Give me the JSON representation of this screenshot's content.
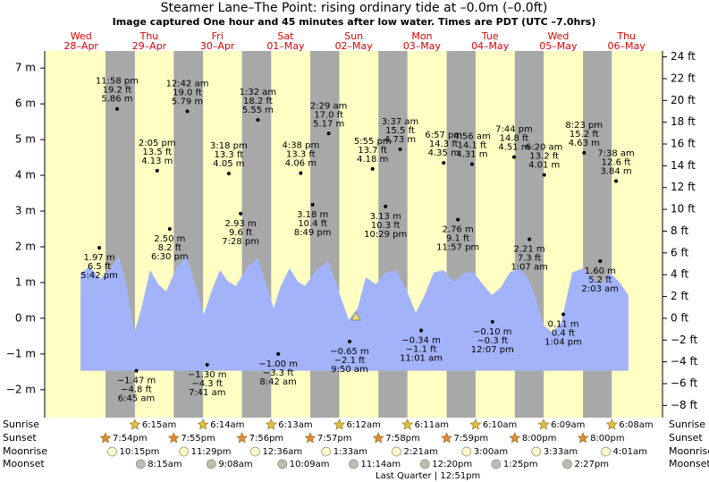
{
  "chart_data": {
    "type": "tide",
    "title": "Steamer Lane–The Point: rising  ordinary tide at –0.0m (–0.0ft)",
    "subtitle": "Image captured One hour and 45 minutes after low water. Times are PDT (UTC –7.0hrs)",
    "ylim": [
      -2.78,
      7.48
    ],
    "yticks": [
      {
        "value": -2,
        "label": "−2 m"
      },
      {
        "value": -1,
        "label": "−1 m"
      },
      {
        "value": 0,
        "label": "0 m"
      },
      {
        "value": 1,
        "label": "1 m"
      },
      {
        "value": 2,
        "label": "2 m"
      },
      {
        "value": 3,
        "label": "3 m"
      },
      {
        "value": 4,
        "label": "4 m"
      },
      {
        "value": 5,
        "label": "5 m"
      },
      {
        "value": 6,
        "label": "6 m"
      },
      {
        "value": 7,
        "label": "7 m"
      }
    ],
    "y2lim": [
      -9.12,
      24.54
    ],
    "y2ticks": [
      {
        "value": -8,
        "label": "−8 ft"
      },
      {
        "value": -6,
        "label": "−6 ft"
      },
      {
        "value": -4,
        "label": "−4 ft"
      },
      {
        "value": -2,
        "label": "−2 ft"
      },
      {
        "value": 0,
        "label": "0 ft"
      },
      {
        "value": 2,
        "label": "2 ft"
      },
      {
        "value": 4,
        "label": "4 ft"
      },
      {
        "value": 6,
        "label": "6 ft"
      },
      {
        "value": 8,
        "label": "8 ft"
      },
      {
        "value": 10,
        "label": "10 ft"
      },
      {
        "value": 12,
        "label": "12 ft"
      },
      {
        "value": 14,
        "label": "14 ft"
      },
      {
        "value": 16,
        "label": "16 ft"
      },
      {
        "value": 18,
        "label": "18 ft"
      },
      {
        "value": 20,
        "label": "20 ft"
      },
      {
        "value": 22,
        "label": "22 ft"
      },
      {
        "value": 24,
        "label": "24 ft"
      }
    ],
    "event_rows": [
      "Sunrise",
      "Sunset",
      "Moonrise",
      "Moonset"
    ],
    "days": [
      {
        "weekday": "Wed",
        "date": "28–Apr",
        "events": [
          null,
          "7:54pm",
          "10:15pm",
          null
        ],
        "extremes": [
          {
            "time": "5:42 pm",
            "m": 1.97,
            "m_label": "1.97 m",
            "ft_label": "6.5 ft"
          },
          {
            "time": "11:58 pm",
            "m": 5.86,
            "m_label": "5.86 m",
            "ft_label": "19.2 ft"
          }
        ]
      },
      {
        "weekday": "Thu",
        "date": "29–Apr",
        "events": [
          "6:15am",
          "7:55pm",
          "11:29pm",
          "8:15am"
        ],
        "extremes": [
          {
            "time": "6:45 am",
            "m": -1.47,
            "m_label": "−1.47 m",
            "ft_label": "−4.8 ft"
          },
          {
            "time": "2:05 pm",
            "m": 4.13,
            "m_label": "4.13 m",
            "ft_label": "13.5 ft"
          },
          {
            "time": "6:30 pm",
            "m": 2.5,
            "m_label": "2.50 m",
            "ft_label": "8.2 ft"
          }
        ]
      },
      {
        "weekday": "Fri",
        "date": "30–Apr",
        "events": [
          "6:14am",
          "7:56pm",
          null,
          "9:08am"
        ],
        "extremes": [
          {
            "time": "12:42 am",
            "m": 5.79,
            "m_label": "5.79 m",
            "ft_label": "19.0 ft"
          },
          {
            "time": "7:41 am",
            "m": -1.3,
            "m_label": "−1.30 m",
            "ft_label": "−4.3 ft"
          },
          {
            "time": "3:18 pm",
            "m": 4.05,
            "m_label": "4.05 m",
            "ft_label": "13.3 ft"
          },
          {
            "time": "7:28 pm",
            "m": 2.93,
            "m_label": "2.93 m",
            "ft_label": "9.6 ft"
          }
        ]
      },
      {
        "weekday": "Sat",
        "date": "01–May",
        "events": [
          "6:13am",
          "7:57pm",
          "12:36am",
          "10:09am"
        ],
        "extremes": [
          {
            "time": "1:32 am",
            "m": 5.55,
            "m_label": "5.55 m",
            "ft_label": "18.2 ft"
          },
          {
            "time": "8:42 am",
            "m": -1.0,
            "m_label": "−1.00 m",
            "ft_label": "−3.3 ft"
          },
          {
            "time": "4:38 pm",
            "m": 4.06,
            "m_label": "4.06 m",
            "ft_label": "13.3 ft"
          },
          {
            "time": "8:49 pm",
            "m": 3.18,
            "m_label": "3.18 m",
            "ft_label": "10.4 ft"
          }
        ]
      },
      {
        "weekday": "Sun",
        "date": "02–May",
        "events": [
          "6:12am",
          "7:58pm",
          "1:33am",
          "11:14am"
        ],
        "extremes": [
          {
            "time": "2:29 am",
            "m": 5.17,
            "m_label": "5.17 m",
            "ft_label": "17.0 ft"
          },
          {
            "time": "9:50 am",
            "m": -0.65,
            "m_label": "−0.65 m",
            "ft_label": "−2.1 ft"
          },
          {
            "time": "5:55 pm",
            "m": 4.18,
            "m_label": "4.18 m",
            "ft_label": "13.7 ft"
          },
          {
            "time": "10:29 pm",
            "m": 3.13,
            "m_label": "3.13 m",
            "ft_label": "10.3 ft"
          }
        ]
      },
      {
        "weekday": "Mon",
        "date": "03–May",
        "events": [
          "6:11am",
          "7:59pm",
          "2:21am",
          "12:20pm"
        ],
        "extremes": [
          {
            "time": "3:37 am",
            "m": 4.73,
            "m_label": "4.73 m",
            "ft_label": "15.5 ft"
          },
          {
            "time": "11:01 am",
            "m": -0.34,
            "m_label": "−0.34 m",
            "ft_label": "−1.1 ft"
          },
          {
            "time": "6:57 pm",
            "m": 4.35,
            "m_label": "4.35 m",
            "ft_label": "14.3 ft"
          },
          {
            "time": "11:57 pm",
            "m": 2.76,
            "m_label": "2.76 m",
            "ft_label": "9.1 ft"
          }
        ]
      },
      {
        "weekday": "Tue",
        "date": "04–May",
        "events": [
          "6:10am",
          "8:00pm",
          "3:00am",
          "1:25pm"
        ],
        "extremes": [
          {
            "time": "4:56 am",
            "m": 4.31,
            "m_label": "4.31 m",
            "ft_label": "14.1 ft"
          },
          {
            "time": "12:07 pm",
            "m": -0.1,
            "m_label": "−0.10 m",
            "ft_label": "−0.3 ft"
          },
          {
            "time": "7:44 pm",
            "m": 4.51,
            "m_label": "4.51 m",
            "ft_label": "14.8 ft"
          }
        ]
      },
      {
        "weekday": "Wed",
        "date": "05–May",
        "events": [
          "6:09am",
          "8:00pm",
          "3:33am",
          "2:27pm"
        ],
        "extremes": [
          {
            "time": "1:07 am",
            "m": 2.21,
            "m_label": "2.21 m",
            "ft_label": "7.3 ft"
          },
          {
            "time": "6:20 am",
            "m": 4.01,
            "m_label": "4.01 m",
            "ft_label": "13.2 ft"
          },
          {
            "time": "1:04 pm",
            "m": 0.11,
            "m_label": "0.11 m",
            "ft_label": "0.4 ft"
          },
          {
            "time": "8:23 pm",
            "m": 4.63,
            "m_label": "4.63 m",
            "ft_label": "15.2 ft"
          }
        ]
      },
      {
        "weekday": "Thu",
        "date": "06–May",
        "events": [
          "6:08am",
          null,
          "4:01am",
          null
        ],
        "extremes": [
          {
            "time": "2:03 am",
            "m": 1.6,
            "m_label": "1.60 m",
            "ft_label": "5.2 ft"
          },
          {
            "time": "7:38 am",
            "m": 3.84,
            "m_label": "3.84 m",
            "ft_label": "12.6 ft"
          }
        ]
      }
    ],
    "curve": {
      "x": [
        11.1,
        14.2,
        18.0,
        21.8,
        24.6,
        27.4,
        30.0,
        32.5,
        35.6,
        38.5,
        41.3,
        44.8,
        48.5,
        51.7,
        54.5,
        57.3,
        60.2,
        63.0,
        65.8,
        69.6,
        73.4,
        76.2,
        79.1,
        81.6,
        84.7,
        87.6,
        90.1,
        94.2,
        98.3,
        101.4,
        105.5,
        108.7,
        111.5,
        115.0,
        118.7,
        122.2,
        125.9,
        129.1,
        132.3,
        135.4,
        138.9,
        142.6,
        146.4,
        149.6,
        152.7,
        155.9,
        159.0,
        162.2,
        165.3,
        168.5,
        171.0,
        174.1,
        177.3,
        180.4,
        184.2,
        188.0,
        191.1,
        194.3,
        197.4,
        200.6,
        204.0
      ],
      "values": [
        1.25,
        1.45,
        1.1,
        1.4,
        1.75,
        0.9,
        -0.42,
        0.28,
        1.35,
        0.95,
        0.75,
        1.4,
        1.75,
        0.9,
        0.1,
        0.78,
        1.35,
        1.03,
        0.9,
        1.4,
        1.7,
        1.03,
        0.28,
        0.9,
        1.4,
        1.03,
        0.9,
        1.35,
        1.6,
        0.9,
        -0.05,
        0.28,
        1.15,
        0.95,
        1.28,
        1.35,
        0.78,
        0.15,
        0.65,
        1.28,
        1.35,
        1.03,
        1.28,
        1.28,
        0.95,
        0.65,
        0.85,
        1.28,
        1.4,
        1.15,
        0.65,
        -0.2,
        -0.4,
        -0.1,
        1.28,
        1.4,
        1.15,
        0.95,
        1.28,
        1.03,
        0.65
      ]
    },
    "moon_phase": "Last Quarter | 12:51pm"
  }
}
